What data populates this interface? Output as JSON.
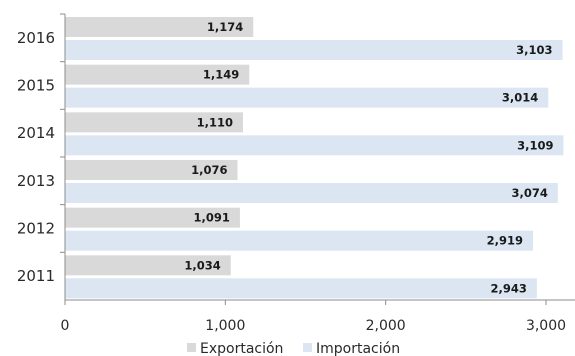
{
  "chart_data": {
    "type": "bar",
    "orientation": "horizontal",
    "categories": [
      "2016",
      "2015",
      "2014",
      "2013",
      "2012",
      "2011"
    ],
    "series": [
      {
        "name": "Exportación",
        "color": "#d9d9d9",
        "values": [
          1174,
          1149,
          1110,
          1076,
          1091,
          1034
        ],
        "labels": [
          "1,174",
          "1,149",
          "1,110",
          "1,076",
          "1,091",
          "1,034"
        ]
      },
      {
        "name": "Importación",
        "color": "#dce6f2",
        "values": [
          3103,
          3014,
          3109,
          3074,
          2919,
          2943
        ],
        "labels": [
          "3,103",
          "3,014",
          "3,109",
          "3,074",
          "2,919",
          "2,943"
        ]
      }
    ],
    "xlim": [
      0,
      3000
    ],
    "xticks": [
      0,
      1000,
      2000,
      3000
    ],
    "xtick_labels": [
      "0",
      "1,000",
      "2,000",
      "3,000"
    ],
    "grid": false,
    "legend_position": "bottom"
  }
}
